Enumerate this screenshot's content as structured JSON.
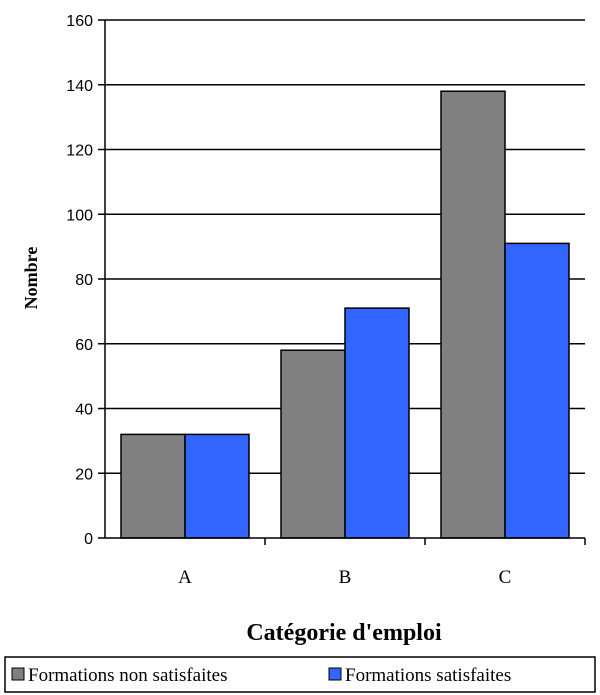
{
  "chart_data": {
    "type": "bar",
    "categories": [
      "A",
      "B",
      "C"
    ],
    "series": [
      {
        "name": "Formations non satisfaites",
        "values": [
          32,
          58,
          138
        ],
        "color": "#808080"
      },
      {
        "name": "Formations satisfaites",
        "values": [
          32,
          71,
          91
        ],
        "color": "#3366FF"
      }
    ],
    "xlabel": "Catégorie d'emploi",
    "ylabel": "Nombre",
    "ylim": [
      0,
      160
    ],
    "yticks": [
      0,
      20,
      40,
      60,
      80,
      100,
      120,
      140,
      160
    ],
    "grid": true,
    "legend_position": "bottom"
  }
}
